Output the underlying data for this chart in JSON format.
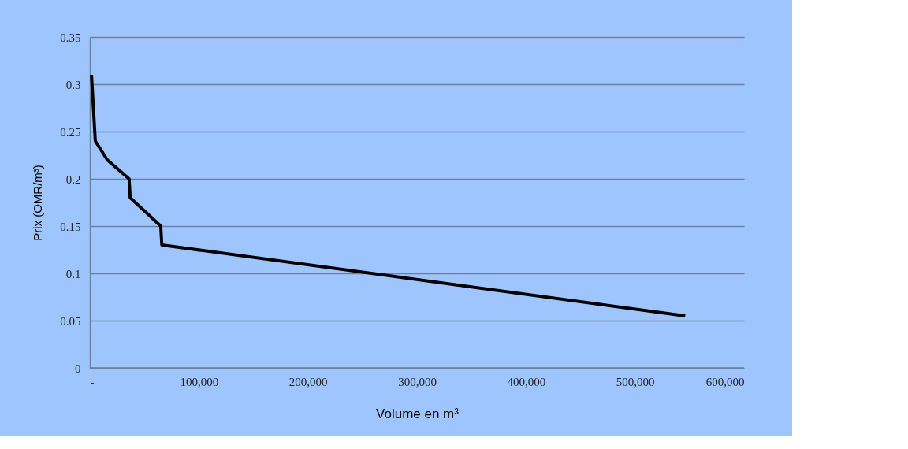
{
  "chart_data": {
    "type": "line",
    "xlabel": "Volume en m³",
    "ylabel": "Prix (OMR/m³)",
    "x": [
      1500,
      5000,
      16000,
      36000,
      37000,
      65000,
      66000,
      546000
    ],
    "series": [
      {
        "color": "#000000",
        "values": [
          0.31,
          0.24,
          0.22,
          0.2,
          0.18,
          0.15,
          0.13,
          0.055
        ]
      }
    ],
    "xlim": [
      0,
      600000
    ],
    "xticks": [
      {
        "value": 0,
        "label": "-"
      },
      {
        "value": 100000,
        "label": "100,000"
      },
      {
        "value": 200000,
        "label": "200,000"
      },
      {
        "value": 300000,
        "label": "300,000"
      },
      {
        "value": 400000,
        "label": "400,000"
      },
      {
        "value": 500000,
        "label": "500,000"
      },
      {
        "value": 600000,
        "label": "600,000"
      }
    ],
    "ylim": [
      0,
      0.35
    ],
    "yticks": [
      0,
      0.05,
      0.1,
      0.15,
      0.2,
      0.25,
      0.3,
      0.35
    ],
    "grid": "y",
    "marker": "none",
    "line_style": "solid"
  }
}
